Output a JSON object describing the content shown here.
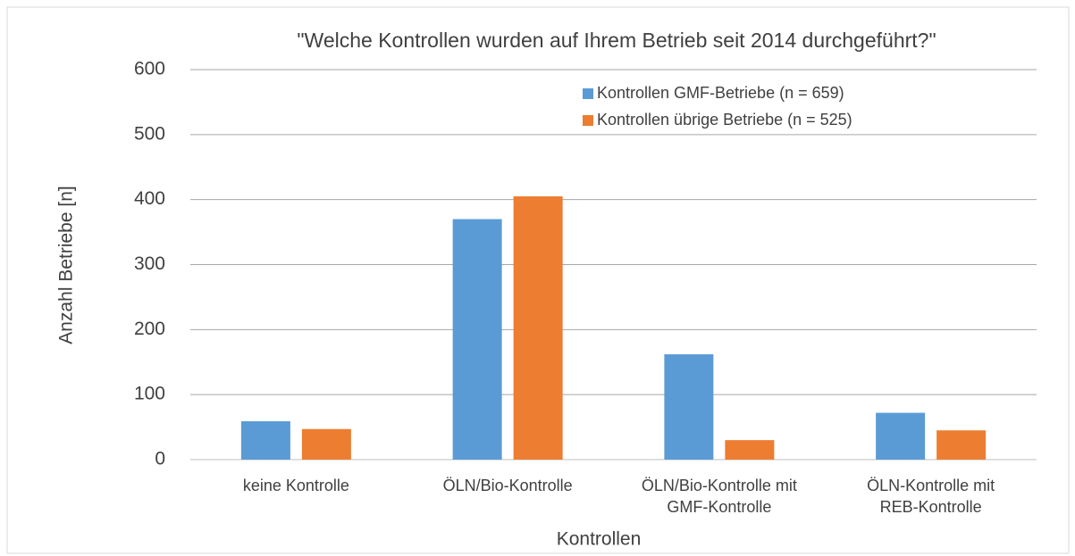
{
  "chart_data": {
    "type": "bar",
    "title": "\"Welche Kontrollen wurden auf Ihrem Betrieb seit 2014 durchgeführt?\"",
    "x_label": "Kontrollen",
    "y_label": "Anzahl Betriebe [n]",
    "categories": [
      "keine Kontrolle",
      "ÖLN/Bio-Kontrolle",
      "ÖLN/Bio-Kontrolle mit\nGMF-Kontrolle",
      "ÖLN-Kontrolle mit\nREB-Kontrolle"
    ],
    "series": [
      {
        "name": "Kontrollen GMF-Betriebe (n = 659)",
        "color": "#5b9bd5",
        "values": [
          59,
          370,
          162,
          72
        ]
      },
      {
        "name": "Kontrollen übrige Betriebe (n = 525)",
        "color": "#ed7d31",
        "values": [
          47,
          405,
          30,
          45
        ]
      }
    ],
    "ylim": [
      0,
      600
    ],
    "yticks": [
      0,
      100,
      200,
      300,
      400,
      500,
      600
    ],
    "grid": true,
    "legend": "top-right"
  }
}
